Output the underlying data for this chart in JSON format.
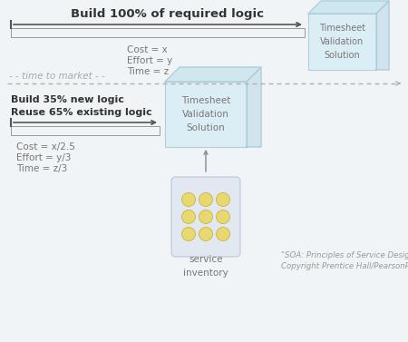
{
  "bg_color": "#f0f4f6",
  "title1": "Build 100% of required logic",
  "title2_line1": "Build 35% new logic",
  "title2_line2": "Reuse 65% existing logic",
  "cost1_lines": [
    "Cost = x",
    "Effort = y",
    "Time = z"
  ],
  "cost2_lines": [
    "Cost = x/2.5",
    "Effort = y/3",
    "Time = z/3"
  ],
  "ttm_label": "- - time to market - -",
  "box1_label": "Timesheet\nValidation\nSolution",
  "box2_label": "Timesheet\nValidation\nSolution",
  "inventory_label": "service\ninventory",
  "copyright_line1": "\"SOA: Principles of Service Design\"",
  "copyright_line2": "Copyright Prentice Hall/PearsonPTR",
  "arrow_color": "#555555",
  "dashed_color": "#b0b0b0",
  "box_edge_color": "#a8cdd8",
  "box_face_color": "#daeef5",
  "box_top_color": "#c8e4ee",
  "box_right_color": "#c0dce8",
  "inventory_edge_color": "#b0b8cc",
  "inventory_face_color": "#dde4f0",
  "gold_color": "#e8d870",
  "gold_edge_color": "#c8aa30",
  "text_color": "#777777",
  "bold_color": "#333333",
  "rect_color": "#999999",
  "ttm_color": "#aaaaaa"
}
